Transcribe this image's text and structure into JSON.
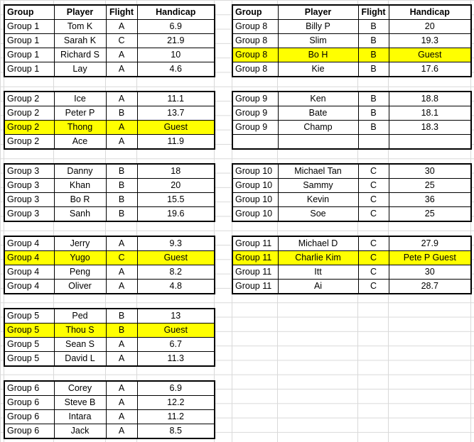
{
  "headers": {
    "group": "Group",
    "player": "Player",
    "flight": "Flight",
    "handicap": "Handicap"
  },
  "left": [
    {
      "rows": [
        {
          "group": "Group 1",
          "player": "Tom K",
          "flight": "A",
          "handicap": "6.9"
        },
        {
          "group": "Group 1",
          "player": "Sarah K",
          "flight": "C",
          "handicap": "21.9"
        },
        {
          "group": "Group 1",
          "player": "Richard S",
          "flight": "A",
          "handicap": "10"
        },
        {
          "group": "Group 1",
          "player": "Lay",
          "flight": "A",
          "handicap": "4.6"
        }
      ]
    },
    {
      "rows": [
        {
          "group": "Group 2",
          "player": "Ice",
          "flight": "A",
          "handicap": "11.1"
        },
        {
          "group": "Group 2",
          "player": "Peter P",
          "flight": "B",
          "handicap": "13.7"
        },
        {
          "group": "Group 2",
          "player": "Thong",
          "flight": "A",
          "handicap": "Guest",
          "highlight": true
        },
        {
          "group": "Group 2",
          "player": "Ace",
          "flight": "A",
          "handicap": "11.9"
        }
      ]
    },
    {
      "rows": [
        {
          "group": "Group 3",
          "player": "Danny",
          "flight": "B",
          "handicap": "18"
        },
        {
          "group": "Group 3",
          "player": "Khan",
          "flight": "B",
          "handicap": "20"
        },
        {
          "group": "Group 3",
          "player": "Bo R",
          "flight": "B",
          "handicap": "15.5"
        },
        {
          "group": "Group 3",
          "player": "Sanh",
          "flight": "B",
          "handicap": "19.6"
        }
      ]
    },
    {
      "rows": [
        {
          "group": "Group 4",
          "player": "Jerry",
          "flight": "A",
          "handicap": "9.3"
        },
        {
          "group": "Group 4",
          "player": "Yugo",
          "flight": "C",
          "handicap": "Guest",
          "highlight": true
        },
        {
          "group": "Group 4",
          "player": "Peng",
          "flight": "A",
          "handicap": "8.2"
        },
        {
          "group": "Group 4",
          "player": "Oliver",
          "flight": "A",
          "handicap": "4.8"
        }
      ]
    },
    {
      "rows": [
        {
          "group": "Group 5",
          "player": "Ped",
          "flight": "B",
          "handicap": "13"
        },
        {
          "group": "Group 5",
          "player": "Thou S",
          "flight": "B",
          "handicap": "Guest",
          "highlight": true
        },
        {
          "group": "Group 5",
          "player": "Sean S",
          "flight": "A",
          "handicap": "6.7"
        },
        {
          "group": "Group 5",
          "player": "David L",
          "flight": "A",
          "handicap": "11.3"
        }
      ]
    },
    {
      "rows": [
        {
          "group": "Group 6",
          "player": "Corey",
          "flight": "A",
          "handicap": "6.9"
        },
        {
          "group": "Group 6",
          "player": "Steve B",
          "flight": "A",
          "handicap": "12.2"
        },
        {
          "group": "Group 6",
          "player": "Intara",
          "flight": "A",
          "handicap": "11.2"
        },
        {
          "group": "Group 6",
          "player": "Jack",
          "flight": "A",
          "handicap": "8.5"
        }
      ]
    }
  ],
  "right": [
    {
      "rows": [
        {
          "group": "Group 8",
          "player": "Billy P",
          "flight": "B",
          "handicap": "20"
        },
        {
          "group": "Group 8",
          "player": "Slim",
          "flight": "B",
          "handicap": "19.3"
        },
        {
          "group": "Group 8",
          "player": "Bo H",
          "flight": "B",
          "handicap": "Guest",
          "highlight": true
        },
        {
          "group": "Group 8",
          "player": "Kie",
          "flight": "B",
          "handicap": "17.6"
        }
      ]
    },
    {
      "rows": [
        {
          "group": "Group 9",
          "player": "Ken",
          "flight": "B",
          "handicap": "18.8"
        },
        {
          "group": "Group 9",
          "player": "Bate",
          "flight": "B",
          "handicap": "18.1"
        },
        {
          "group": "Group 9",
          "player": "Champ",
          "flight": "B",
          "handicap": "18.3"
        },
        {
          "group": "",
          "player": "",
          "flight": "",
          "handicap": ""
        }
      ]
    },
    {
      "rows": [
        {
          "group": "Group 10",
          "player": "Michael Tan",
          "flight": "C",
          "handicap": "30"
        },
        {
          "group": "Group 10",
          "player": "Sammy",
          "flight": "C",
          "handicap": "25"
        },
        {
          "group": "Group 10",
          "player": "Kevin",
          "flight": "C",
          "handicap": "36"
        },
        {
          "group": "Group 10",
          "player": "Soe",
          "flight": "C",
          "handicap": "25"
        }
      ]
    },
    {
      "rows": [
        {
          "group": "Group 11",
          "player": "Michael D",
          "flight": "C",
          "handicap": "27.9"
        },
        {
          "group": "Group 11",
          "player": "Charlie Kim",
          "flight": "C",
          "handicap": "Pete P Guest",
          "highlight": true
        },
        {
          "group": "Group 11",
          "player": "Itt",
          "flight": "C",
          "handicap": "30"
        },
        {
          "group": "Group 11",
          "player": "Ai",
          "flight": "C",
          "handicap": "28.7"
        }
      ]
    }
  ]
}
